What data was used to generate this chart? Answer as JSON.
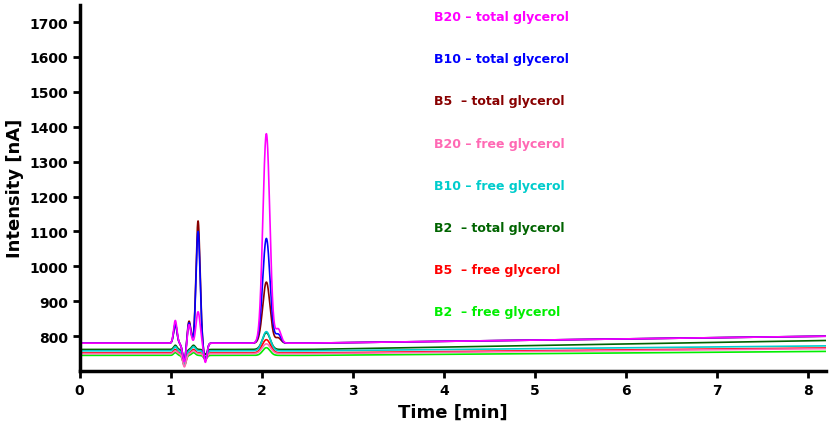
{
  "xlabel": "Time [min]",
  "ylabel": "Intensity [nA]",
  "xlim": [
    0,
    8.2
  ],
  "ylim": [
    700,
    1750
  ],
  "yticks": [
    800,
    900,
    1000,
    1100,
    1200,
    1300,
    1400,
    1500,
    1600,
    1700
  ],
  "xticks": [
    0,
    1,
    2,
    3,
    4,
    5,
    6,
    7,
    8
  ],
  "legend": [
    {
      "label": "B20 – total glycerol",
      "color": "#FF00FF"
    },
    {
      "label": "B10 – total glycerol",
      "color": "#0000FF"
    },
    {
      "label": "B5  – total glycerol",
      "color": "#880000"
    },
    {
      "label": "B20 – free glycerol",
      "color": "#FF69B4"
    },
    {
      "label": "B10 – free glycerol",
      "color": "#00CCCC"
    },
    {
      "label": "B2  – total glycerol",
      "color": "#006400"
    },
    {
      "label": "B5  – free glycerol",
      "color": "#FF0000"
    },
    {
      "label": "B2  – free glycerol",
      "color": "#00EE00"
    }
  ],
  "background_color": "#FFFFFF",
  "axes_linewidth": 2.5,
  "line_linewidth": 1.2
}
